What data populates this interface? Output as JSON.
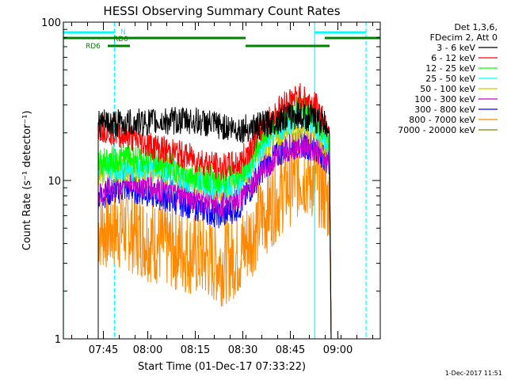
{
  "chart_data": {
    "type": "line",
    "title": "HESSI Observing Summary Count Rates",
    "xlabel": "Start Time (01-Dec-17 07:33:22)",
    "ylabel": "Count Rate (s⁻¹ detector⁻¹)",
    "xaxis": {
      "unit": "minutes since 07:33:22",
      "range": [
        0,
        100
      ],
      "scale": "linear"
    },
    "yaxis": {
      "scale": "log",
      "range": [
        1,
        100
      ]
    },
    "xticks": [
      {
        "minute": 12.63,
        "label": "07:45"
      },
      {
        "minute": 26.63,
        "label": "08:00"
      },
      {
        "minute": 41.63,
        "label": "08:15"
      },
      {
        "minute": 56.63,
        "label": "08:30"
      },
      {
        "minute": 71.63,
        "label": "08:45"
      },
      {
        "minute": 86.63,
        "label": "09:00"
      }
    ],
    "yticks": [
      {
        "value": 1,
        "label": "1"
      },
      {
        "value": 10,
        "label": "10"
      },
      {
        "value": 100,
        "label": "100"
      }
    ],
    "legend": {
      "placement": "top-right",
      "header": [
        "Det 1,3,6,",
        "FDecim 2, Att 0"
      ]
    },
    "series": [
      {
        "name": "3 - 6 keV",
        "color": "#000000",
        "profile": [
          [
            11,
            23
          ],
          [
            20,
            23
          ],
          [
            40,
            24
          ],
          [
            55,
            21
          ],
          [
            62,
            22
          ],
          [
            70,
            25
          ],
          [
            74,
            26
          ],
          [
            80,
            24
          ],
          [
            84,
            22
          ],
          [
            84.5,
            1
          ]
        ]
      },
      {
        "name": "6 - 12 keV",
        "color": "#ff0000",
        "profile": [
          [
            11,
            22
          ],
          [
            20,
            19
          ],
          [
            30,
            16
          ],
          [
            40,
            14
          ],
          [
            50,
            12
          ],
          [
            56,
            13
          ],
          [
            63,
            22
          ],
          [
            70,
            31
          ],
          [
            75,
            34
          ],
          [
            80,
            29
          ],
          [
            84,
            22
          ],
          [
            84.5,
            1
          ]
        ]
      },
      {
        "name": "12 - 25 keV",
        "color": "#00ff00",
        "profile": [
          [
            11,
            13
          ],
          [
            20,
            14
          ],
          [
            30,
            13
          ],
          [
            40,
            11
          ],
          [
            50,
            10
          ],
          [
            56,
            11
          ],
          [
            63,
            19
          ],
          [
            70,
            26
          ],
          [
            75,
            30
          ],
          [
            80,
            24
          ],
          [
            84,
            18
          ],
          [
            84.5,
            1
          ]
        ]
      },
      {
        "name": "25 - 50 keV",
        "color": "#00ffff",
        "profile": [
          [
            11,
            12
          ],
          [
            20,
            12
          ],
          [
            30,
            12
          ],
          [
            40,
            10
          ],
          [
            50,
            9
          ],
          [
            56,
            10
          ],
          [
            63,
            17
          ],
          [
            70,
            23
          ],
          [
            75,
            26
          ],
          [
            80,
            22
          ],
          [
            84,
            17
          ],
          [
            84.5,
            1
          ]
        ]
      },
      {
        "name": "50 - 100 keV",
        "color": "#cccc00",
        "profile": [
          [
            11,
            11
          ],
          [
            20,
            12
          ],
          [
            30,
            12
          ],
          [
            40,
            10
          ],
          [
            50,
            9
          ],
          [
            56,
            10
          ],
          [
            63,
            16
          ],
          [
            70,
            21
          ],
          [
            75,
            22
          ],
          [
            80,
            20
          ],
          [
            84,
            16
          ],
          [
            84.5,
            1
          ]
        ]
      },
      {
        "name": "100 - 300 keV",
        "color": "#cc00cc",
        "profile": [
          [
            11,
            8
          ],
          [
            20,
            10
          ],
          [
            30,
            9
          ],
          [
            40,
            8
          ],
          [
            50,
            7
          ],
          [
            56,
            8
          ],
          [
            63,
            12
          ],
          [
            70,
            16
          ],
          [
            75,
            17
          ],
          [
            80,
            16
          ],
          [
            84,
            13
          ],
          [
            84.5,
            1
          ]
        ]
      },
      {
        "name": "300 - 800 keV",
        "color": "#0000ff",
        "profile": [
          [
            11,
            8
          ],
          [
            20,
            9
          ],
          [
            30,
            8
          ],
          [
            40,
            7
          ],
          [
            50,
            6
          ],
          [
            56,
            7
          ],
          [
            63,
            12
          ],
          [
            70,
            16
          ],
          [
            75,
            17
          ],
          [
            80,
            16
          ],
          [
            84,
            13
          ],
          [
            84.5,
            1
          ]
        ]
      },
      {
        "name": "800 - 7000 keV",
        "color": "#ff8800",
        "profile": [
          [
            11,
            5
          ],
          [
            20,
            5
          ],
          [
            30,
            4
          ],
          [
            40,
            3.5
          ],
          [
            50,
            3
          ],
          [
            56,
            3.5
          ],
          [
            63,
            6
          ],
          [
            70,
            9
          ],
          [
            75,
            11
          ],
          [
            80,
            10
          ],
          [
            84,
            7
          ],
          [
            84.5,
            1
          ]
        ]
      },
      {
        "name": "7000 - 20000 keV",
        "color": "#808000",
        "profile": [
          [
            84.5,
            1
          ]
        ]
      }
    ],
    "markers": {
      "cyan_lines_solid": [
        0,
        79.3
      ],
      "cyan_lines_dashed": [
        16.1,
        95.5
      ],
      "bars": [
        {
          "label": "N",
          "color": "#00ffff",
          "segments": [
            [
              0,
              16.1
            ],
            [
              79.3,
              95.5
            ]
          ],
          "level": 1
        },
        {
          "label": "RD0",
          "color": "#008000",
          "segments": [
            [
              16.1,
              57.5
            ],
            [
              82.5,
              93
            ],
            [
              0,
              16.1
            ],
            [
              93,
              100
            ]
          ],
          "level": 2
        },
        {
          "label": "RD6",
          "color": "#008000",
          "segments": [
            [
              14,
              21
            ],
            [
              57.5,
              84
            ]
          ],
          "level": 3
        }
      ]
    }
  },
  "footer": {
    "timestamp": "1-Dec-2017 11:51"
  }
}
